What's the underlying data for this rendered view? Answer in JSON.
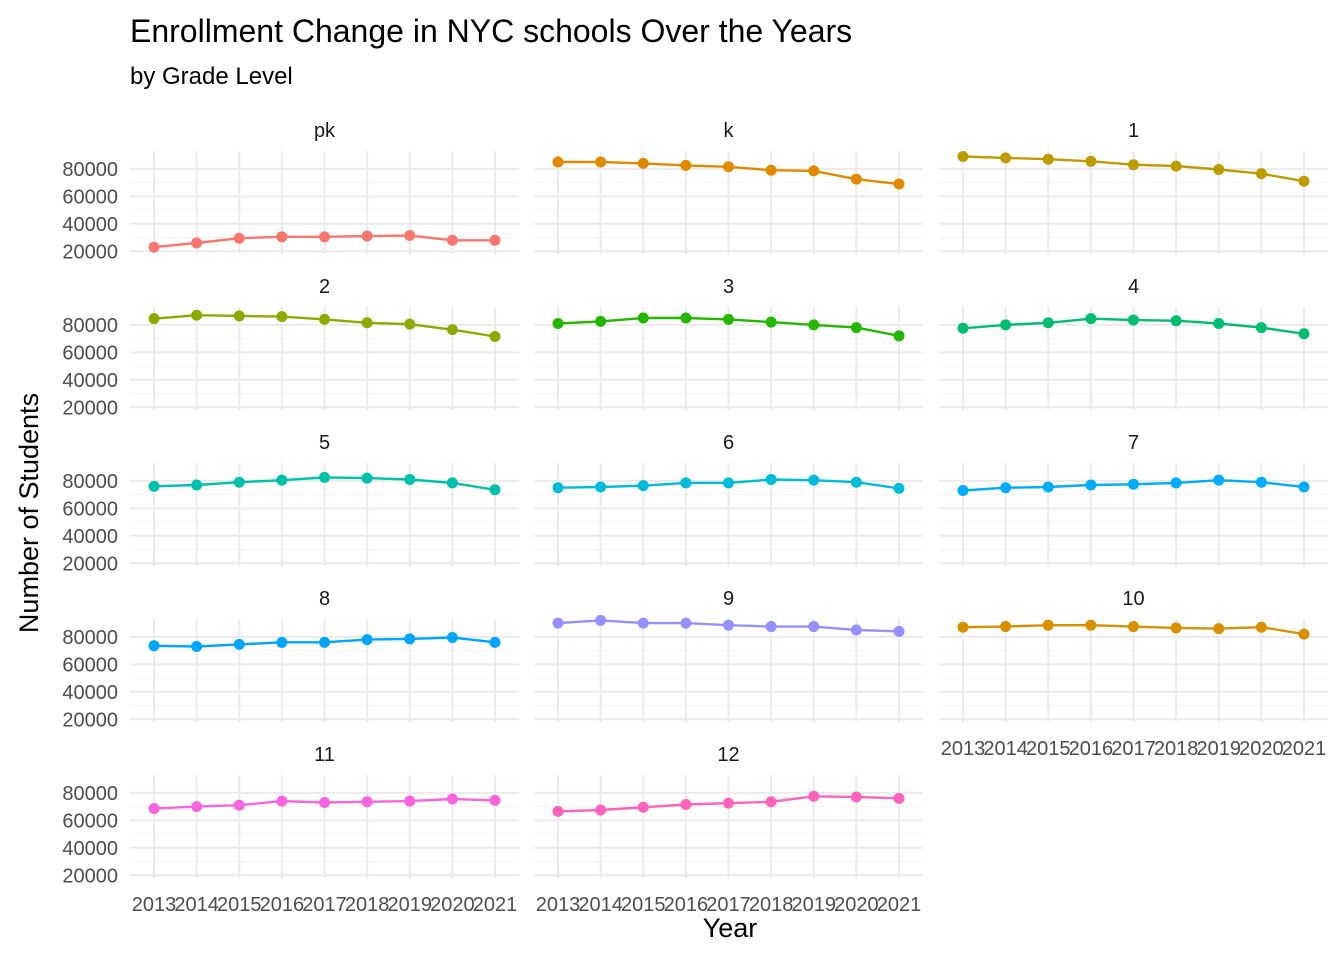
{
  "chart_data": {
    "type": "line",
    "title": "Enrollment Change in NYC schools Over the Years",
    "subtitle": "by Grade Level",
    "xlabel": "Year",
    "ylabel": "Number of Students",
    "x": [
      2013,
      2014,
      2015,
      2016,
      2017,
      2018,
      2019,
      2020,
      2021
    ],
    "x_tick_labels": [
      "2013",
      "2014",
      "2015",
      "2016",
      "2017",
      "2018",
      "2019",
      "2020",
      "2021"
    ],
    "y_ticks": [
      20000,
      40000,
      60000,
      80000
    ],
    "y_tick_labels": [
      "20000",
      "40000",
      "60000",
      "80000"
    ],
    "ylim": [
      18000,
      93000
    ],
    "grid": true,
    "legend": "none",
    "facet_by": "grade",
    "facet_columns": 3,
    "series": [
      {
        "name": "pk",
        "color": "#F8766D",
        "values": [
          23000,
          26000,
          29500,
          30500,
          30500,
          31000,
          31500,
          28000,
          28000
        ]
      },
      {
        "name": "k",
        "color": "#E18A00",
        "values": [
          85000,
          85000,
          84000,
          82500,
          81500,
          79000,
          78500,
          72500,
          69000
        ]
      },
      {
        "name": "1",
        "color": "#BE9C00",
        "values": [
          89000,
          88000,
          87000,
          85500,
          83000,
          82000,
          79500,
          76500,
          71000
        ]
      },
      {
        "name": "2",
        "color": "#8CAB00",
        "values": [
          84500,
          87000,
          86500,
          86000,
          84000,
          81500,
          80500,
          76500,
          71500
        ]
      },
      {
        "name": "3",
        "color": "#24B700",
        "values": [
          81000,
          82500,
          85000,
          85000,
          84000,
          82000,
          80000,
          78000,
          72000
        ]
      },
      {
        "name": "4",
        "color": "#00BE70",
        "values": [
          77500,
          80000,
          81500,
          84500,
          83500,
          83000,
          81000,
          78000,
          73500
        ]
      },
      {
        "name": "5",
        "color": "#00C1AB",
        "values": [
          76000,
          77000,
          79000,
          80500,
          82500,
          82000,
          81000,
          78500,
          73500
        ]
      },
      {
        "name": "6",
        "color": "#00BBDA",
        "values": [
          75000,
          75500,
          76500,
          78500,
          78500,
          81000,
          80500,
          79000,
          74500
        ]
      },
      {
        "name": "7",
        "color": "#00ACFC",
        "values": [
          73000,
          75000,
          75500,
          77000,
          77500,
          78500,
          80500,
          79000,
          75500
        ]
      },
      {
        "name": "8",
        "color": "#00A5FF",
        "values": [
          73500,
          73000,
          74500,
          76000,
          76000,
          78000,
          78500,
          79500,
          76000
        ]
      },
      {
        "name": "9",
        "color": "#9590FF",
        "values": [
          90000,
          92000,
          90000,
          90000,
          88500,
          87500,
          87500,
          85000,
          84000
        ]
      },
      {
        "name": "10",
        "color": "#D89000",
        "values": [
          87000,
          87500,
          88500,
          88500,
          87500,
          86500,
          86000,
          87000,
          82000
        ]
      },
      {
        "name": "11",
        "color": "#F863DF",
        "values": [
          68500,
          70000,
          71000,
          74000,
          73000,
          73500,
          74000,
          75500,
          74500
        ]
      },
      {
        "name": "12",
        "color": "#FF62BC",
        "values": [
          66500,
          67500,
          69500,
          71500,
          72500,
          73500,
          77500,
          77000,
          76000
        ]
      }
    ]
  }
}
